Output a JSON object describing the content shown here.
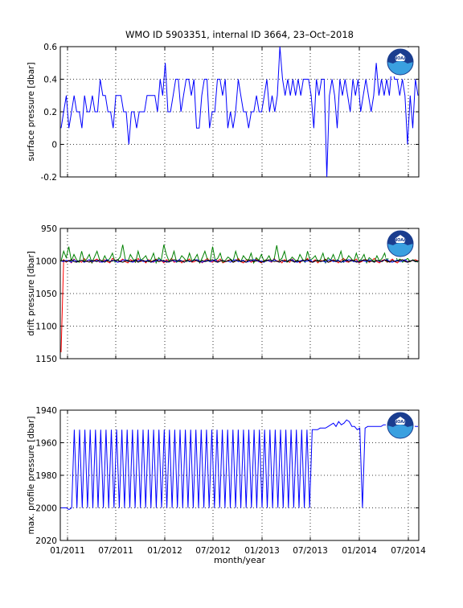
{
  "title": "WMO ID 5903351, internal ID 3664, 23–Oct–2018",
  "xlabel": "month/year",
  "x_ticks": [
    "01/2011",
    "07/2011",
    "01/2012",
    "07/2012",
    "01/2013",
    "07/2013",
    "01/2014",
    "07/2014"
  ],
  "logo": {
    "icon": "noaa-logo-icon",
    "text": "NOAA",
    "colors": {
      "outer": "#1a3d8f",
      "inner": "#3aa0e0",
      "bird": "#ffffff"
    }
  },
  "chart_data": [
    {
      "type": "line",
      "ylabel": "surface pressure [dbar]",
      "ylim": [
        -0.2,
        0.6
      ],
      "yticks": [
        "-0.2",
        "0",
        "0.2",
        "0.4",
        "0.6"
      ],
      "yvalues": [
        -0.2,
        0,
        0.2,
        0.4,
        0.6
      ],
      "reverse": false,
      "grid": true,
      "series": [
        {
          "color": "#0000ff",
          "values": [
            0.1,
            0.2,
            0.3,
            0.1,
            0.2,
            0.3,
            0.2,
            0.2,
            0.1,
            0.3,
            0.2,
            0.2,
            0.3,
            0.2,
            0.2,
            0.4,
            0.3,
            0.3,
            0.2,
            0.2,
            0.1,
            0.3,
            0.3,
            0.3,
            0.2,
            0.2,
            0.0,
            0.2,
            0.2,
            0.1,
            0.2,
            0.2,
            0.2,
            0.3,
            0.3,
            0.3,
            0.3,
            0.2,
            0.4,
            0.3,
            0.5,
            0.2,
            0.2,
            0.3,
            0.4,
            0.4,
            0.2,
            0.3,
            0.4,
            0.4,
            0.3,
            0.4,
            0.1,
            0.1,
            0.3,
            0.4,
            0.4,
            0.1,
            0.2,
            0.2,
            0.4,
            0.4,
            0.3,
            0.4,
            0.1,
            0.2,
            0.1,
            0.2,
            0.4,
            0.3,
            0.2,
            0.2,
            0.1,
            0.2,
            0.2,
            0.3,
            0.2,
            0.2,
            0.3,
            0.4,
            0.2,
            0.3,
            0.2,
            0.3,
            0.6,
            0.4,
            0.3,
            0.4,
            0.3,
            0.4,
            0.3,
            0.4,
            0.3,
            0.4,
            0.4,
            0.4,
            0.3,
            0.1,
            0.4,
            0.3,
            0.4,
            0.4,
            -0.2,
            0.3,
            0.4,
            0.3,
            0.1,
            0.4,
            0.3,
            0.4,
            0.3,
            0.2,
            0.4,
            0.3,
            0.4,
            0.2,
            0.3,
            0.4,
            0.3,
            0.2,
            0.3,
            0.5,
            0.3,
            0.4,
            0.3,
            0.4,
            0.3,
            0.5,
            0.4,
            0.4,
            0.3,
            0.4,
            0.3,
            0.0,
            0.3,
            0.1,
            0.4,
            0.3
          ]
        }
      ]
    },
    {
      "type": "line",
      "ylabel": "drift pressure [dbar]",
      "ylim": [
        950,
        1150
      ],
      "yticks": [
        "950",
        "1000",
        "1050",
        "1100",
        "1150"
      ],
      "yvalues": [
        950,
        1000,
        1050,
        1100,
        1150
      ],
      "reverse": true,
      "grid": true,
      "series": [
        {
          "color": "#ff0000",
          "values": [
            1140,
            998,
            1002,
            999,
            1003,
            997,
            1001,
            1000,
            1002,
            996,
            1001,
            998,
            1003,
            999,
            997,
            1002,
            1000,
            998,
            1001,
            1003,
            996,
            999,
            1002,
            1000,
            997,
            1001,
            1003,
            998,
            1000,
            1002,
            996,
            1001,
            999,
            1003,
            998,
            1000,
            1002,
            997,
            1001,
            999,
            1003,
            998,
            1000,
            996,
            1002,
            1001,
            998,
            1003,
            999,
            1000,
            997,
            1002,
            1001,
            998,
            1000,
            1003,
            999,
            996,
            1001,
            1002,
            998,
            1000,
            997,
            1003,
            1001,
            999,
            998,
            1002,
            1000,
            996,
            1001,
            1003,
            999,
            998,
            1002,
            1000,
            997,
            1001,
            1003,
            999,
            998,
            1000,
            1002,
            996,
            1001,
            999,
            1003,
            998,
            1000,
            1002,
            997,
            1001,
            999,
            1003,
            998,
            1000,
            996,
            1002,
            1001,
            998,
            1003,
            999,
            1000,
            997,
            1002,
            1001,
            998,
            1000,
            1003,
            999,
            996,
            1001,
            1002,
            998,
            1000,
            997,
            1003,
            1001,
            999,
            998,
            1002,
            1000,
            996,
            1001,
            1003,
            999,
            998,
            1002,
            1000,
            997,
            1001,
            1003,
            999,
            998,
            1000,
            1002,
            1001,
            999,
            998,
            1000
          ]
        },
        {
          "color": "#008000",
          "values": [
            1000,
            985,
            995,
            978,
            1000,
            990,
            998,
            1002,
            985,
            1000,
            997,
            990,
            1003,
            994,
            985,
            998,
            1001,
            992,
            1000,
            996,
            988,
            1002,
            999,
            994,
            975,
            998,
            1001,
            990,
            997,
            1002,
            985,
            999,
            996,
            992,
            1001,
            998,
            988,
            1003,
            995,
            999,
            975,
            990,
            1000,
            997,
            985,
            1002,
            999,
            992,
            996,
            1001,
            988,
            1000,
            997,
            990,
            1003,
            995,
            985,
            998,
            1001,
            978,
            999,
            996,
            988,
            1002,
            999,
            994,
            997,
            1000,
            985,
            998,
            1001,
            992,
            997,
            999,
            988,
            1003,
            995,
            999,
            990,
            1000,
            998,
            992,
            1001,
            997,
            976,
            999,
            996,
            985,
            1002,
            999,
            994,
            998,
            1001,
            990,
            997,
            1002,
            985,
            999,
            996,
            992,
            1001,
            998,
            988,
            1003,
            995,
            999,
            990,
            1000,
            997,
            985,
            1002,
            999,
            992,
            996,
            1001,
            988,
            1000,
            997,
            990,
            1003,
            995,
            998,
            1001,
            992,
            1000,
            996,
            988,
            1002,
            980,
            975,
            985,
            1000,
            997,
            1002,
            999,
            996,
            1001,
            998,
            1000,
            1002
          ]
        },
        {
          "color": "#0000ff",
          "values": [
            1000,
            1001,
            999,
            1000,
            1002,
            998,
            1001,
            1000,
            999,
            1002,
            1000,
            998,
            1001,
            1000,
            999,
            1001,
            1002,
            1000,
            998,
            1001,
            999,
            1000,
            1002,
            1001,
            999,
            998,
            1000,
            1001,
            1002,
            999,
            1000,
            998,
            1001,
            1000,
            999,
            1002,
            1001,
            1000,
            998,
            999,
            1001,
            1000,
            1002,
            999,
            1000,
            1001,
            998,
            1000,
            1002,
            999,
            1001,
            1000,
            999,
            998,
            1001,
            1002,
            1000,
            999,
            1001,
            1000,
            998,
            1002,
            1000,
            999,
            1001,
            1000,
            1002,
            999,
            998,
            1001,
            1000,
            999,
            1002,
            1001,
            1000,
            998,
            999,
            1001,
            1000,
            1002,
            999,
            1000,
            1001,
            998,
            1000,
            1002,
            999,
            1001,
            1000,
            999,
            998,
            1001,
            1002,
            1000,
            999,
            1001,
            1000,
            998,
            1002,
            1000,
            999,
            1001,
            1000,
            1002,
            999,
            998,
            1001,
            1000,
            999,
            1002,
            1001,
            1000,
            998,
            999,
            1001,
            1000,
            1002,
            999,
            1000,
            1001,
            998,
            1000,
            1002,
            999,
            1001,
            1000,
            999,
            998,
            1001,
            1002,
            1000,
            999,
            1001,
            1000,
            998,
            1002,
            1000,
            999,
            1001,
            1000
          ]
        },
        {
          "color": "#000000",
          "values": [
            1000,
            999,
            1001,
            1000,
            998,
            1001,
            1002,
            1000,
            999,
            1001,
            1000,
            1002,
            999,
            1000,
            1001,
            998,
            1000,
            1002,
            999,
            1001,
            1000,
            999,
            998,
            1001,
            1002,
            1000,
            999,
            1001,
            1000,
            998,
            1002,
            1000,
            999,
            1001,
            1000,
            1002,
            999,
            998,
            1001,
            1000,
            999,
            1002,
            1001,
            1000,
            998,
            999,
            1001,
            1000,
            1002,
            999,
            1000,
            1001,
            998,
            1000,
            1002,
            999,
            1001,
            1000,
            999,
            998,
            1001,
            1002,
            1000,
            999,
            1001,
            1000,
            998,
            1002,
            1000,
            999,
            1001,
            1000,
            1002,
            999,
            998,
            1001,
            1000,
            999,
            1002,
            1001,
            1000,
            998,
            999,
            1001,
            1000,
            1002,
            999,
            1000,
            1001,
            998,
            1000,
            1002,
            999,
            1001,
            1000,
            999,
            998,
            1001,
            1002,
            1000,
            999,
            1001,
            1000,
            998,
            1002,
            1000,
            999,
            1001,
            1000,
            1002,
            999,
            998,
            1001,
            1000,
            999,
            1002,
            1001,
            1000,
            998,
            999,
            1001,
            1000,
            1002,
            999,
            1000,
            1001,
            998,
            1000,
            1002,
            999,
            1001,
            1000,
            999,
            998,
            1001,
            1002,
            1000,
            999,
            1001,
            1000
          ]
        }
      ]
    },
    {
      "type": "line",
      "ylabel": "max. profile pressure [dbar]",
      "ylim": [
        1940,
        2020
      ],
      "yticks": [
        "1940",
        "1960",
        "1980",
        "2000",
        "2020"
      ],
      "yvalues": [
        1940,
        1960,
        1980,
        2000,
        2020
      ],
      "reverse": true,
      "grid": true,
      "series": [
        {
          "color": "#0000ff",
          "values": [
            2000,
            2000,
            2000,
            2001,
            2000,
            1952,
            2000,
            1952,
            2000,
            1952,
            2000,
            1952,
            2000,
            1952,
            2000,
            1952,
            2000,
            1952,
            2000,
            1952,
            2000,
            1952,
            2000,
            1952,
            2000,
            1952,
            2000,
            1952,
            2000,
            1952,
            2000,
            1952,
            2000,
            1952,
            2000,
            1952,
            2000,
            1952,
            2000,
            1952,
            2000,
            1952,
            2000,
            1952,
            2000,
            1952,
            2000,
            1952,
            2000,
            1952,
            2000,
            1952,
            2000,
            1952,
            2000,
            1952,
            2000,
            1952,
            2000,
            1952,
            2000,
            1952,
            2000,
            1952,
            2000,
            1952,
            2000,
            1952,
            2000,
            1952,
            2000,
            1952,
            2000,
            1952,
            2000,
            1952,
            2000,
            1952,
            2000,
            1952,
            2000,
            1952,
            2000,
            1952,
            2000,
            1952,
            2000,
            1952,
            2000,
            1952,
            2000,
            1952,
            2000,
            1952,
            2000,
            1952,
            1952,
            1952,
            1951,
            1951,
            1951,
            1950,
            1949,
            1948,
            1950,
            1947,
            1949,
            1948,
            1946,
            1947,
            1950,
            1950,
            1952,
            1951,
            2000,
            1951,
            1950,
            1950,
            1950,
            1950,
            1950,
            1950,
            1949,
            1949,
            1949,
            1949,
            1949,
            1949,
            1949,
            1948,
            1948,
            1948,
            1948,
            1949,
            1950,
            1950
          ]
        }
      ]
    }
  ]
}
